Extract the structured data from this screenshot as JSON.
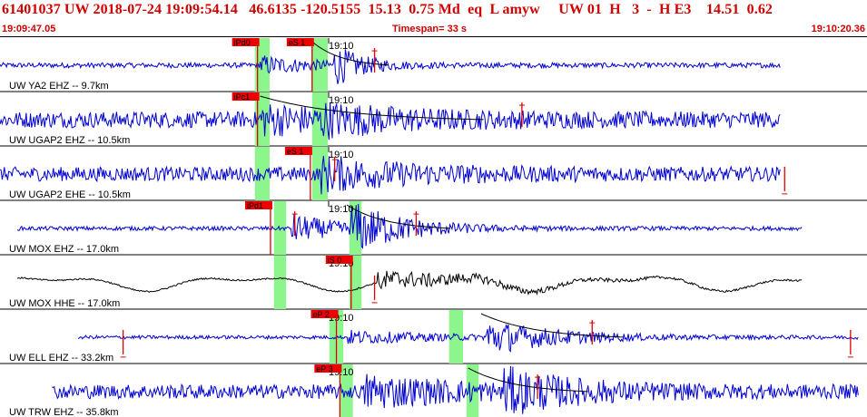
{
  "header": {
    "title": "61401037 UW 2018-07-24 19:09:54.14   46.6135 -120.5155  15.13  0.75 Md  eq  L amyw     UW 01  H   3  -  H E3    14.51  0.62",
    "start_time": "19:09:47.05",
    "timespan": "Timespan=  33 s",
    "end_time": "19:10:20.36"
  },
  "colors": {
    "header_text": "#d00000",
    "trace": "#0000d0",
    "trace_horizontal_broadband": "#000000",
    "pick_box": "#ee0000",
    "pick_line": "#dd0000",
    "window": "#8cf58c",
    "curve": "#000000",
    "separator": "#000000"
  },
  "traces": [
    {
      "label": "UW YA2 EHZ -- 9.7km",
      "color": "blue",
      "data_start": 0.0,
      "data_end": 0.9,
      "quiet_amp": 0.1,
      "picks": [
        {
          "label": "iPd0",
          "t": 0.297
        },
        {
          "label": "eS 1",
          "t": 0.36
        }
      ],
      "time_mark": {
        "label": "19:10",
        "t": 0.4
      },
      "windows": [
        {
          "t0": 0.294,
          "t1": 0.311
        },
        {
          "t0": 0.36,
          "t1": 0.378
        }
      ],
      "events": [
        {
          "t": 0.3,
          "amp": 0.35,
          "decay": 0.06
        },
        {
          "t": 0.385,
          "amp": 0.75,
          "decay": 0.03
        }
      ],
      "spikes": [
        {
          "t": 0.432,
          "dir": 1
        }
      ],
      "coda_curve": {
        "t0": 0.36,
        "t1": 0.45
      }
    },
    {
      "label": "UW UGAP2 EHZ -- 10.5km",
      "color": "blue",
      "data_start": 0.0,
      "data_end": 0.9,
      "quiet_amp": 0.32,
      "picks": [
        {
          "label": "iPc1",
          "t": 0.297
        }
      ],
      "time_mark": {
        "label": "19:10",
        "t": 0.4
      },
      "windows": [
        {
          "t0": 0.294,
          "t1": 0.311
        },
        {
          "t0": 0.36,
          "t1": 0.378
        }
      ],
      "events": [
        {
          "t": 0.3,
          "amp": 0.45,
          "decay": 0.1
        },
        {
          "t": 0.37,
          "amp": 0.3,
          "decay": 0.1
        }
      ],
      "spikes": [
        {
          "t": 0.602,
          "dir": 1
        }
      ],
      "coda_curve": {
        "t0": 0.3,
        "t1": 0.56
      }
    },
    {
      "label": "UW UGAP2 EHE -- 10.5km",
      "color": "blue",
      "data_start": 0.0,
      "data_end": 0.9,
      "quiet_amp": 0.28,
      "picks": [
        {
          "label": "eS 1",
          "t": 0.358
        }
      ],
      "time_mark": {
        "label": "19:10",
        "t": 0.4
      },
      "windows": [
        {
          "t0": 0.294,
          "t1": 0.311
        },
        {
          "t0": 0.36,
          "t1": 0.378
        }
      ],
      "events": [
        {
          "t": 0.37,
          "amp": 0.55,
          "decay": 0.1
        }
      ],
      "spikes": [
        {
          "t": 0.386,
          "dir": 1
        },
        {
          "t": 0.905,
          "dir": -1
        }
      ],
      "coda_curve": null
    },
    {
      "label": "UW MOX EHZ -- 17.0km",
      "color": "blue",
      "data_start": 0.02,
      "data_end": 0.925,
      "quiet_amp": 0.08,
      "picks": [
        {
          "label": "iPd1",
          "t": 0.312
        }
      ],
      "time_mark": {
        "label": "19:10",
        "t": 0.4
      },
      "windows": [
        {
          "t0": 0.316,
          "t1": 0.33
        },
        {
          "t0": 0.403,
          "t1": 0.417
        }
      ],
      "events": [
        {
          "t": 0.335,
          "amp": 0.55,
          "decay": 0.06
        },
        {
          "t": 0.405,
          "amp": 0.9,
          "decay": 0.06
        }
      ],
      "spikes": [
        {
          "t": 0.48,
          "dir": 1
        },
        {
          "t": 0.34,
          "dir": 1
        }
      ],
      "coda_curve": {
        "t0": 0.4,
        "t1": 0.52
      }
    },
    {
      "label": "UW MOX HHE -- 17.0km",
      "color": "black",
      "data_start": 0.02,
      "data_end": 0.925,
      "quiet_amp": 0.03,
      "picks": [
        {
          "label": "iS 0",
          "t": 0.405
        }
      ],
      "time_mark": {
        "label": "19:10",
        "t": 0.4
      },
      "windows": [
        {
          "t0": 0.316,
          "t1": 0.33
        },
        {
          "t0": 0.403,
          "t1": 0.417
        }
      ],
      "events": [
        {
          "t": 0.435,
          "amp": 0.4,
          "decay": 0.12
        }
      ],
      "spikes": [
        {
          "t": 0.432,
          "dir": -1
        }
      ],
      "coda_curve": null
    },
    {
      "label": "UW ELL EHZ -- 33.2km",
      "color": "blue",
      "data_start": 0.09,
      "data_end": 0.99,
      "quiet_amp": 0.07,
      "picks": [
        {
          "label": "eP 2",
          "t": 0.388
        }
      ],
      "time_mark": {
        "label": "19:10",
        "t": 0.4
      },
      "windows": [
        {
          "t0": 0.38,
          "t1": 0.396
        },
        {
          "t0": 0.518,
          "t1": 0.534
        }
      ],
      "events": [
        {
          "t": 0.4,
          "amp": 0.25,
          "decay": 0.1
        },
        {
          "t": 0.56,
          "amp": 0.65,
          "decay": 0.08
        }
      ],
      "spikes": [
        {
          "t": 0.142,
          "dir": -1
        },
        {
          "t": 0.683,
          "dir": 1
        },
        {
          "t": 0.981,
          "dir": -1
        }
      ],
      "coda_curve": {
        "t0": 0.555,
        "t1": 0.72
      }
    },
    {
      "label": "UW TRW EHZ -- 35.8km",
      "color": "blue",
      "data_start": 0.06,
      "data_end": 0.99,
      "quiet_amp": 0.28,
      "picks": [
        {
          "label": "eP 3",
          "t": 0.392
        }
      ],
      "time_mark": {
        "label": "19:10",
        "t": 0.4
      },
      "windows": [
        {
          "t0": 0.392,
          "t1": 0.407
        },
        {
          "t0": 0.538,
          "t1": 0.552
        }
      ],
      "events": [
        {
          "t": 0.42,
          "amp": 0.55,
          "decay": 0.1
        },
        {
          "t": 0.58,
          "amp": 0.7,
          "decay": 0.08
        }
      ],
      "spikes": [
        {
          "t": 0.62,
          "dir": 1
        }
      ],
      "coda_curve": {
        "t0": 0.54,
        "t1": 0.68
      }
    }
  ]
}
